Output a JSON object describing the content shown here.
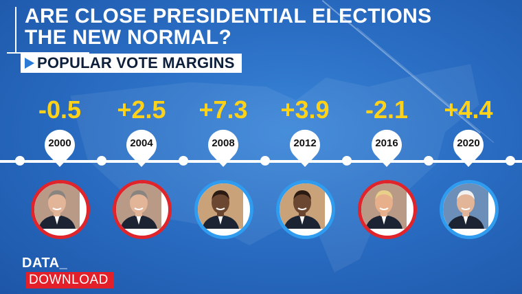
{
  "title_lines": [
    "ARE CLOSE PRESIDENTIAL ELECTIONS",
    "THE NEW NORMAL?"
  ],
  "subtitle": "POPULAR VOTE MARGINS",
  "colors": {
    "republican": "#e0242b",
    "democrat": "#2f9cf0",
    "margin_text": "#ffd21a"
  },
  "elections": [
    {
      "year": "2000",
      "margin": "-0.5",
      "party": "republican",
      "portrait_icon": "george-w-bush-portrait"
    },
    {
      "year": "2004",
      "margin": "+2.5",
      "party": "republican",
      "portrait_icon": "george-w-bush-portrait"
    },
    {
      "year": "2008",
      "margin": "+7.3",
      "party": "democrat",
      "portrait_icon": "barack-obama-portrait"
    },
    {
      "year": "2012",
      "margin": "+3.9",
      "party": "democrat",
      "portrait_icon": "barack-obama-portrait"
    },
    {
      "year": "2016",
      "margin": "-2.1",
      "party": "republican",
      "portrait_icon": "donald-trump-portrait"
    },
    {
      "year": "2020",
      "margin": "+4.4",
      "party": "democrat",
      "portrait_icon": "joe-biden-portrait"
    }
  ],
  "logo": {
    "line1": "DATA_",
    "line2": "DOWNLOAD"
  }
}
